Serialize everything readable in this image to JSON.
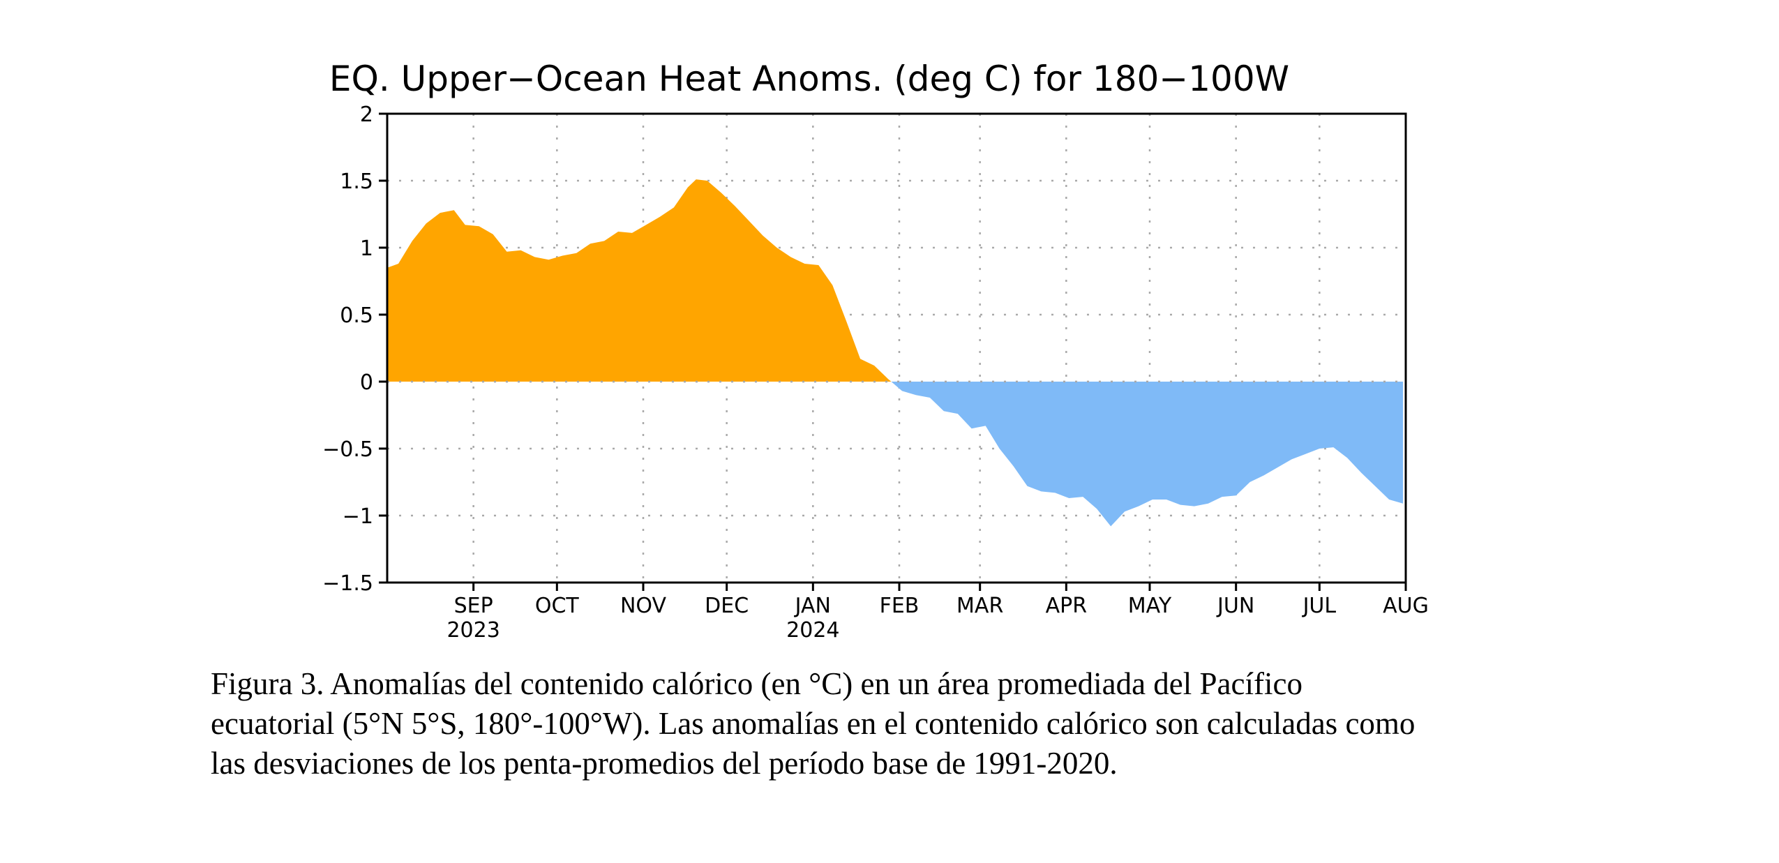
{
  "chart_data": {
    "type": "area",
    "title": "EQ. Upper−Ocean Heat Anoms. (deg C) for 180−100W",
    "xlabel": "",
    "ylabel": "",
    "x_range": [
      "2023-08-01",
      "2024-08-01"
    ],
    "ylim": [
      -1.5,
      2
    ],
    "y_ticks": [
      "2",
      "1.5",
      "1",
      "0.5",
      "0",
      "−0.5",
      "−1",
      "−1.5"
    ],
    "y_tick_values": [
      2,
      1.5,
      1,
      0.5,
      0,
      -0.5,
      -1,
      -1.5
    ],
    "x_ticks": [
      {
        "date": "2023-09-01",
        "label": "SEP",
        "year": "2023"
      },
      {
        "date": "2023-10-01",
        "label": "OCT",
        "year": ""
      },
      {
        "date": "2023-11-01",
        "label": "NOV",
        "year": ""
      },
      {
        "date": "2023-12-01",
        "label": "DEC",
        "year": ""
      },
      {
        "date": "2024-01-01",
        "label": "JAN",
        "year": "2024"
      },
      {
        "date": "2024-02-01",
        "label": "FEB",
        "year": ""
      },
      {
        "date": "2024-03-01",
        "label": "MAR",
        "year": ""
      },
      {
        "date": "2024-04-01",
        "label": "APR",
        "year": ""
      },
      {
        "date": "2024-05-01",
        "label": "MAY",
        "year": ""
      },
      {
        "date": "2024-06-01",
        "label": "JUN",
        "year": ""
      },
      {
        "date": "2024-07-01",
        "label": "JUL",
        "year": ""
      },
      {
        "date": "2024-08-01",
        "label": "AUG",
        "year": ""
      }
    ],
    "grid": true,
    "colors": {
      "positive": "#ffa500",
      "negative": "#7fbaf7"
    },
    "series": [
      {
        "x": [
          "2023-08-01",
          "2023-08-05",
          "2023-08-10",
          "2023-08-15",
          "2023-08-20",
          "2023-08-25",
          "2023-08-29",
          "2023-09-03",
          "2023-09-08",
          "2023-09-13",
          "2023-09-18",
          "2023-09-23",
          "2023-09-28",
          "2023-10-03",
          "2023-10-08",
          "2023-10-13",
          "2023-10-18",
          "2023-10-23",
          "2023-10-28",
          "2023-11-02",
          "2023-11-07",
          "2023-11-12",
          "2023-11-17",
          "2023-11-20",
          "2023-11-24",
          "2023-11-29",
          "2023-12-04",
          "2023-12-09",
          "2023-12-14",
          "2023-12-19",
          "2023-12-24",
          "2023-12-29",
          "2024-01-03",
          "2024-01-08",
          "2024-01-13",
          "2024-01-18",
          "2024-01-23",
          "2024-01-28",
          "2024-02-02",
          "2024-02-07",
          "2024-02-12",
          "2024-02-17",
          "2024-02-22",
          "2024-02-27",
          "2024-03-03",
          "2024-03-08",
          "2024-03-13",
          "2024-03-18",
          "2024-03-23",
          "2024-03-28",
          "2024-04-02",
          "2024-04-07",
          "2024-04-12",
          "2024-04-17",
          "2024-04-22",
          "2024-04-27",
          "2024-05-02",
          "2024-05-07",
          "2024-05-12",
          "2024-05-17",
          "2024-05-22",
          "2024-05-27",
          "2024-06-01",
          "2024-06-06",
          "2024-06-11",
          "2024-06-16",
          "2024-06-21",
          "2024-06-26",
          "2024-07-01",
          "2024-07-06",
          "2024-07-11",
          "2024-07-16",
          "2024-07-21",
          "2024-07-26",
          "2024-07-31"
        ],
        "values": [
          0.85,
          0.88,
          1.05,
          1.18,
          1.26,
          1.28,
          1.17,
          1.16,
          1.1,
          0.97,
          0.98,
          0.93,
          0.91,
          0.94,
          0.96,
          1.03,
          1.05,
          1.12,
          1.11,
          1.17,
          1.23,
          1.3,
          1.45,
          1.51,
          1.5,
          1.41,
          1.31,
          1.2,
          1.09,
          1.0,
          0.93,
          0.88,
          0.87,
          0.72,
          0.45,
          0.17,
          0.12,
          0.02,
          -0.07,
          -0.1,
          -0.12,
          -0.22,
          -0.24,
          -0.35,
          -0.33,
          -0.5,
          -0.63,
          -0.78,
          -0.82,
          -0.83,
          -0.87,
          -0.86,
          -0.95,
          -1.08,
          -0.97,
          -0.93,
          -0.88,
          -0.88,
          -0.92,
          -0.93,
          -0.91,
          -0.86,
          -0.85,
          -0.75,
          -0.7,
          -0.64,
          -0.58,
          -0.54,
          -0.5,
          -0.49,
          -0.57,
          -0.68,
          -0.78,
          -0.88,
          -0.91
        ]
      }
    ]
  },
  "caption": {
    "lines": [
      "Figura 3. Anomalías del contenido calórico (en °C) en un área promediada del Pacífico",
      "ecuatorial (5°N 5°S, 180°-100°W). Las anomalías en el contenido calórico son calculadas como",
      "las desviaciones de los penta-promedios del período base de 1991-2020."
    ]
  }
}
